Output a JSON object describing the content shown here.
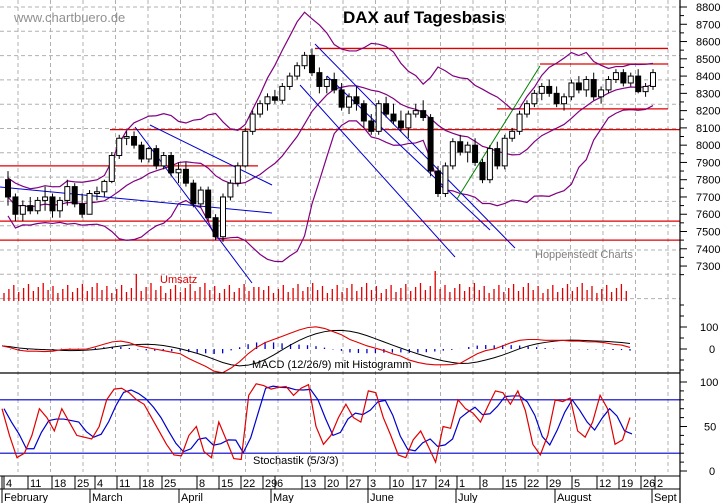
{
  "watermark": "www.chartbuero.de",
  "title": "DAX auf Tagesbasis",
  "credit": "Hoppenstedt Charts",
  "volume_label": "Umsatz",
  "macd_label": "MACD (12/26/9) mit Histogramm",
  "stoch_label": "Stochastik (5/3/3)",
  "colors": {
    "candle": "#000000",
    "bollinger": "#800080",
    "support_resistance": "#e00000",
    "trendline_blue": "#0000cc",
    "trendline_green": "#008000",
    "volume": "#e00000",
    "macd_line": "#e00000",
    "signal_line": "#000000",
    "histogram": "#0000cc",
    "stoch_k": "#e00000",
    "stoch_d": "#0000cc",
    "grid": "#b0b0b0"
  },
  "chart_data": {
    "type": "candlestick",
    "title": "DAX auf Tagesbasis",
    "price_axis": {
      "ticks": [
        8800,
        8700,
        8600,
        8500,
        8400,
        8300,
        8200,
        8100,
        8000,
        7900,
        7800,
        7700,
        7600,
        7500,
        7400,
        7300
      ],
      "range": [
        7300,
        8800
      ]
    },
    "macd_axis": {
      "ticks": [
        "100",
        "0"
      ]
    },
    "stoch_axis": {
      "ticks": [
        "100",
        "50",
        "0"
      ],
      "bands": [
        80,
        20
      ]
    },
    "date_ticks": [
      "4",
      "11",
      "18",
      "25",
      "4",
      "11",
      "18",
      "25",
      "8",
      "15",
      "22",
      "29",
      "6",
      "13",
      "20",
      "27",
      "3",
      "10",
      "17",
      "24",
      "1",
      "8",
      "15",
      "22",
      "29",
      "5",
      "12",
      "19",
      "26",
      "2"
    ],
    "months": [
      "February",
      "March",
      "April",
      "May",
      "June",
      "July",
      "August",
      "Sept"
    ],
    "horizontal_levels": [
      8560,
      8470,
      8210,
      8090,
      7880,
      7560,
      7450
    ],
    "candles_approx": [
      [
        7800,
        7850,
        7650,
        7700
      ],
      [
        7700,
        7720,
        7560,
        7600
      ],
      [
        7600,
        7680,
        7560,
        7650
      ],
      [
        7650,
        7700,
        7600,
        7620
      ],
      [
        7620,
        7700,
        7600,
        7680
      ],
      [
        7680,
        7760,
        7620,
        7700
      ],
      [
        7700,
        7720,
        7580,
        7620
      ],
      [
        7620,
        7700,
        7580,
        7680
      ],
      [
        7680,
        7800,
        7650,
        7760
      ],
      [
        7760,
        7780,
        7640,
        7660
      ],
      [
        7660,
        7720,
        7580,
        7600
      ],
      [
        7600,
        7740,
        7600,
        7720
      ],
      [
        7720,
        7760,
        7680,
        7730
      ],
      [
        7730,
        7800,
        7700,
        7790
      ],
      [
        7790,
        7960,
        7780,
        7940
      ],
      [
        7940,
        8060,
        7920,
        8040
      ],
      [
        8040,
        8080,
        8000,
        8050
      ],
      [
        8050,
        8080,
        7980,
        8000
      ],
      [
        8000,
        8020,
        7900,
        7920
      ],
      [
        7920,
        7990,
        7900,
        7980
      ],
      [
        7980,
        8000,
        7860,
        7880
      ],
      [
        7880,
        7960,
        7860,
        7940
      ],
      [
        7940,
        7960,
        7820,
        7840
      ],
      [
        7840,
        7900,
        7780,
        7860
      ],
      [
        7860,
        7900,
        7760,
        7780
      ],
      [
        7780,
        7800,
        7640,
        7660
      ],
      [
        7660,
        7760,
        7640,
        7740
      ],
      [
        7740,
        7760,
        7560,
        7580
      ],
      [
        7580,
        7600,
        7450,
        7470
      ],
      [
        7470,
        7720,
        7440,
        7700
      ],
      [
        7700,
        7800,
        7680,
        7780
      ],
      [
        7780,
        7900,
        7760,
        7880
      ],
      [
        7880,
        8100,
        7870,
        8080
      ],
      [
        8080,
        8200,
        8060,
        8180
      ],
      [
        8180,
        8260,
        8160,
        8240
      ],
      [
        8240,
        8300,
        8200,
        8280
      ],
      [
        8280,
        8320,
        8240,
        8260
      ],
      [
        8260,
        8360,
        8240,
        8340
      ],
      [
        8340,
        8420,
        8320,
        8400
      ],
      [
        8400,
        8480,
        8380,
        8460
      ],
      [
        8460,
        8540,
        8440,
        8520
      ],
      [
        8520,
        8560,
        8400,
        8420
      ],
      [
        8420,
        8450,
        8300,
        8340
      ],
      [
        8340,
        8400,
        8300,
        8380
      ],
      [
        8380,
        8420,
        8300,
        8320
      ],
      [
        8320,
        8360,
        8200,
        8220
      ],
      [
        8220,
        8300,
        8180,
        8280
      ],
      [
        8280,
        8340,
        8200,
        8240
      ],
      [
        8240,
        8260,
        8100,
        8140
      ],
      [
        8140,
        8180,
        8060,
        8080
      ],
      [
        8080,
        8260,
        8060,
        8240
      ],
      [
        8240,
        8280,
        8160,
        8180
      ],
      [
        8180,
        8240,
        8120,
        8140
      ],
      [
        8140,
        8200,
        8080,
        8100
      ],
      [
        8100,
        8200,
        8040,
        8180
      ],
      [
        8180,
        8240,
        8160,
        8200
      ],
      [
        8200,
        8260,
        8140,
        8160
      ],
      [
        8160,
        8180,
        7820,
        7850
      ],
      [
        7850,
        7880,
        7700,
        7720
      ],
      [
        7720,
        7900,
        7700,
        7880
      ],
      [
        7880,
        8040,
        7860,
        8020
      ],
      [
        8020,
        8060,
        7940,
        7960
      ],
      [
        7960,
        8020,
        7900,
        8000
      ],
      [
        8000,
        8040,
        7880,
        7900
      ],
      [
        7900,
        7920,
        7780,
        7800
      ],
      [
        7800,
        8000,
        7780,
        7980
      ],
      [
        7980,
        8020,
        7860,
        7880
      ],
      [
        7880,
        8060,
        7860,
        8040
      ],
      [
        8040,
        8100,
        8020,
        8080
      ],
      [
        8080,
        8200,
        8060,
        8180
      ],
      [
        8180,
        8260,
        8160,
        8240
      ],
      [
        8240,
        8320,
        8220,
        8300
      ],
      [
        8300,
        8360,
        8260,
        8340
      ],
      [
        8340,
        8380,
        8280,
        8300
      ],
      [
        8300,
        8340,
        8220,
        8240
      ],
      [
        8240,
        8300,
        8200,
        8280
      ],
      [
        8280,
        8380,
        8260,
        8360
      ],
      [
        8360,
        8400,
        8300,
        8320
      ],
      [
        8320,
        8400,
        8280,
        8380
      ],
      [
        8380,
        8420,
        8260,
        8280
      ],
      [
        8280,
        8340,
        8240,
        8320
      ],
      [
        8320,
        8400,
        8300,
        8380
      ],
      [
        8380,
        8440,
        8360,
        8420
      ],
      [
        8420,
        8440,
        8340,
        8360
      ],
      [
        8360,
        8420,
        8340,
        8400
      ],
      [
        8400,
        8440,
        8300,
        8310
      ],
      [
        8310,
        8360,
        8280,
        8340
      ],
      [
        8340,
        8440,
        8320,
        8420
      ]
    ],
    "support_lines_note": "red horizontal support/resistance lines; blue descending channel lines; green ascending trend line; purple Bollinger bands"
  }
}
